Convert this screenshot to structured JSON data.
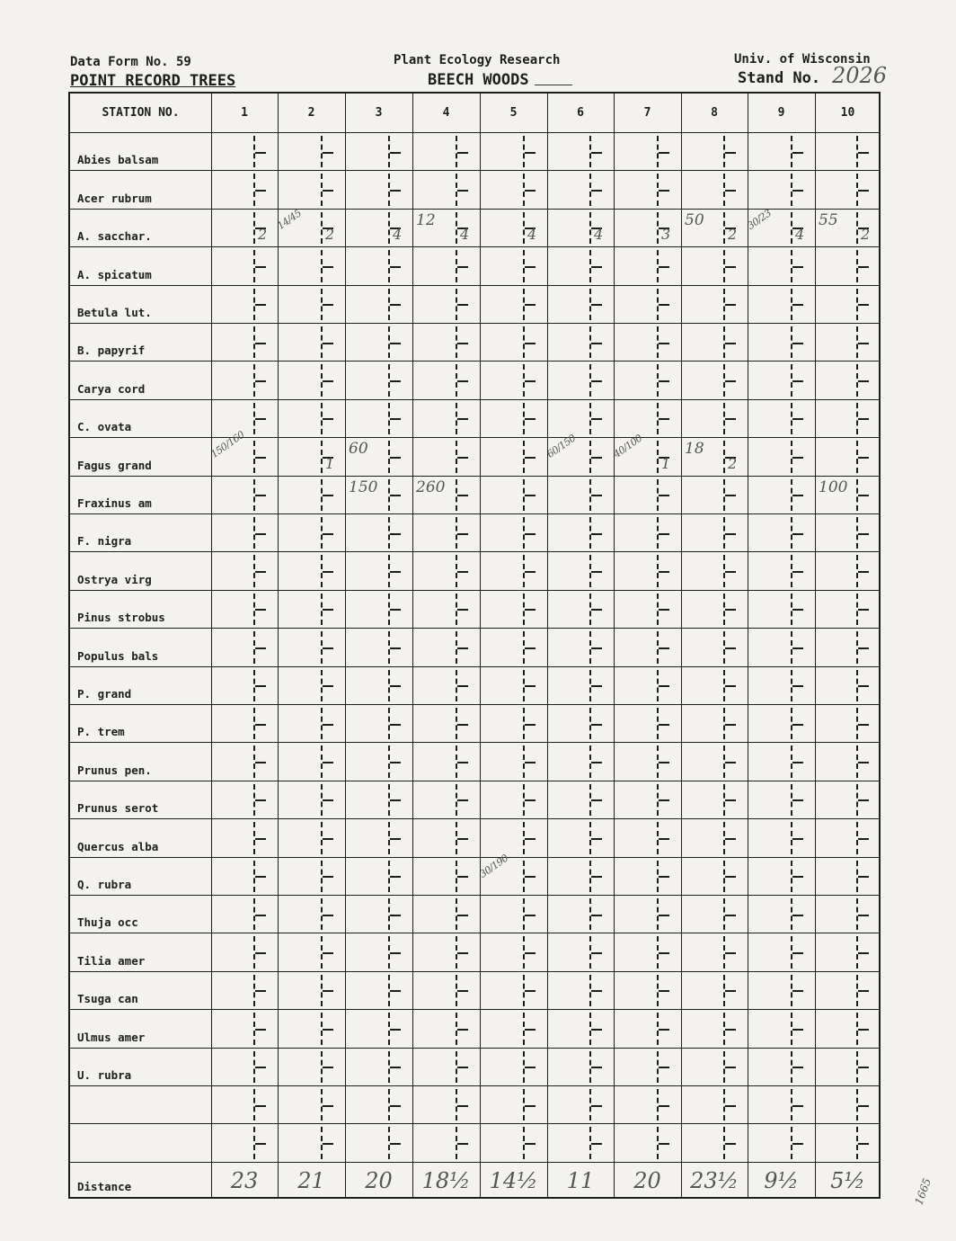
{
  "header": {
    "form_no": "Data Form No. 59",
    "form_title": "POINT RECORD TREES",
    "org": "Plant Ecology Research",
    "site": "BEECH WOODS",
    "univ": "Univ. of Wisconsin",
    "stand_label": "Stand No.",
    "stand_no": "2026"
  },
  "table": {
    "station_header": "STATION NO.",
    "stations": [
      "1",
      "2",
      "3",
      "4",
      "5",
      "6",
      "7",
      "8",
      "9",
      "10"
    ],
    "species": [
      "Abies balsam",
      "Acer rubrum",
      "A. sacchar.",
      "A. spicatum",
      "Betula lut.",
      "B. papyrif",
      "Carya cord",
      "C. ovata",
      "Fagus grand",
      "Fraxinus am",
      "F. nigra",
      "Ostrya virg",
      "Pinus strobus",
      "Populus bals",
      "P. grand",
      "P. trem",
      "Prunus pen.",
      "Prunus serot",
      "Quercus alba",
      "Q. rubra",
      "Thuja occ",
      "Tilia amer",
      "Tsuga can",
      "Ulmus amer",
      "U. rubra",
      "",
      ""
    ],
    "entries": [
      {
        "species": "A. sacchar.",
        "station": "1",
        "side": "2"
      },
      {
        "species": "A. sacchar.",
        "station": "2",
        "main": "14/45",
        "side": "2"
      },
      {
        "species": "A. sacchar.",
        "station": "3",
        "side": "4"
      },
      {
        "species": "A. sacchar.",
        "station": "4",
        "main": "12",
        "side": "4"
      },
      {
        "species": "A. sacchar.",
        "station": "5",
        "side": "4"
      },
      {
        "species": "A. sacchar.",
        "station": "6",
        "side": "4"
      },
      {
        "species": "A. sacchar.",
        "station": "7",
        "side": "3"
      },
      {
        "species": "A. sacchar.",
        "station": "8",
        "main": "50",
        "side": "2"
      },
      {
        "species": "A. sacchar.",
        "station": "9",
        "main": "30/23",
        "side": "4"
      },
      {
        "species": "A. sacchar.",
        "station": "10",
        "main": "55",
        "side": "2"
      },
      {
        "species": "Fagus grand",
        "station": "1",
        "main": "150/160"
      },
      {
        "species": "Fagus grand",
        "station": "2",
        "side": "1"
      },
      {
        "species": "Fagus grand",
        "station": "3",
        "main": "60"
      },
      {
        "species": "Fagus grand",
        "station": "6",
        "main": "60/150"
      },
      {
        "species": "Fagus grand",
        "station": "7",
        "main": "40/100",
        "side": "1"
      },
      {
        "species": "Fagus grand",
        "station": "8",
        "main": "18",
        "side": "2"
      },
      {
        "species": "Fraxinus am",
        "station": "3",
        "main": "150"
      },
      {
        "species": "Fraxinus am",
        "station": "4",
        "main": "260"
      },
      {
        "species": "Fraxinus am",
        "station": "10",
        "main": "100"
      },
      {
        "species": "Q. rubra",
        "station": "5",
        "main": "30/190"
      }
    ],
    "distance_label": "Distance",
    "distances": [
      "23",
      "21",
      "20",
      "18½",
      "14½",
      "11",
      "20",
      "23½",
      "9½",
      "5½"
    ]
  },
  "margin_note": "1665"
}
